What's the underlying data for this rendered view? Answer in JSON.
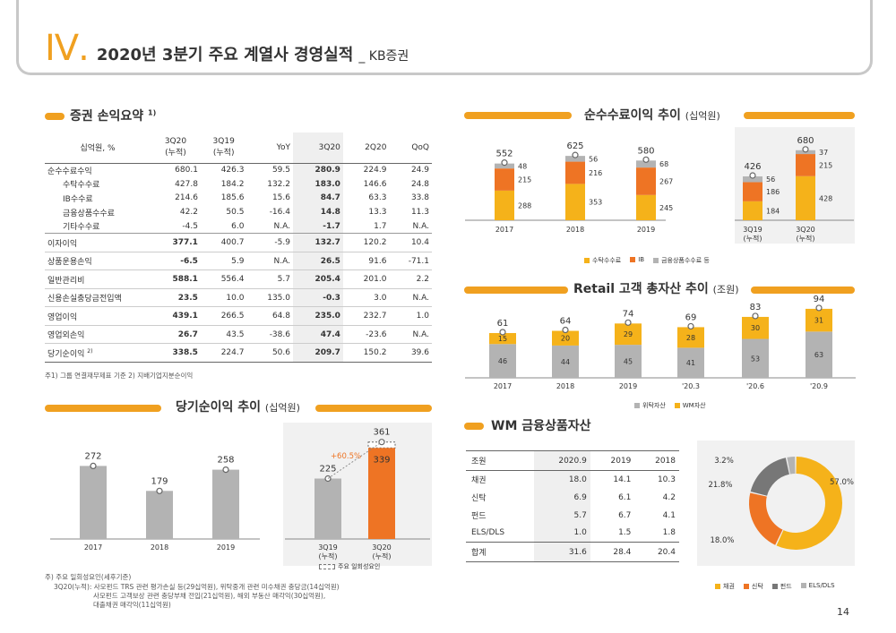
{
  "header": {
    "roman": "IV",
    "title": "2020년 3분기 주요 계열사 경영실적",
    "subtitle": "_ KB증권"
  },
  "pl": {
    "title": "증권 손익요약",
    "sup": "1)",
    "headers": {
      "h0": "십억원, %",
      "h1a": "3Q20",
      "h1b": "(누적)",
      "h2a": "3Q19",
      "h2b": "(누적)",
      "h3": "YoY",
      "h4": "3Q20",
      "h5": "2Q20",
      "h6": "QoQ"
    },
    "rows": [
      {
        "label": "순수수료수익",
        "v": [
          "680.1",
          "426.3",
          "59.5",
          "280.9",
          "224.9",
          "24.9"
        ]
      },
      {
        "label": "수탁수수료",
        "v": [
          "427.8",
          "184.2",
          "132.2",
          "183.0",
          "146.6",
          "24.8"
        ]
      },
      {
        "label": "IB수수료",
        "v": [
          "214.6",
          "185.6",
          "15.6",
          "84.7",
          "63.3",
          "33.8"
        ]
      },
      {
        "label": "금융상품수수료",
        "v": [
          "42.2",
          "50.5",
          "-16.4",
          "14.8",
          "13.3",
          "11.3"
        ]
      },
      {
        "label": "기타수수료",
        "v": [
          "-4.5",
          "6.0",
          "N.A.",
          "-1.7",
          "1.7",
          "N.A."
        ]
      },
      {
        "label": "이자이익",
        "v": [
          "377.1",
          "400.7",
          "-5.9",
          "132.7",
          "120.2",
          "10.4"
        ]
      },
      {
        "label": "상품운용손익",
        "v": [
          "-6.5",
          "5.9",
          "N.A.",
          "26.5",
          "91.6",
          "-71.1"
        ]
      },
      {
        "label": "일반관리비",
        "v": [
          "588.1",
          "556.4",
          "5.7",
          "205.4",
          "201.0",
          "2.2"
        ]
      },
      {
        "label": "신용손실충당금전입액",
        "v": [
          "23.5",
          "10.0",
          "135.0",
          "-0.3",
          "3.0",
          "N.A."
        ]
      },
      {
        "label": "영업이익",
        "v": [
          "439.1",
          "266.5",
          "64.8",
          "235.0",
          "232.7",
          "1.0"
        ]
      },
      {
        "label": "영업외손익",
        "v": [
          "26.7",
          "43.5",
          "-38.6",
          "47.4",
          "-23.6",
          "N.A."
        ]
      },
      {
        "label": "당기순이익",
        "sup": "2)",
        "v": [
          "338.5",
          "224.7",
          "50.6",
          "209.7",
          "150.2",
          "39.6"
        ]
      }
    ],
    "note": "주1) 그룹 연결재무제표 기준   2) 지배기업지분순이익"
  },
  "fee": {
    "title": "순수수료이익 추이",
    "unit": "(십억원)",
    "x": [
      "2017",
      "2018",
      "2019",
      "3Q19\n(누적)",
      "3Q20\n(누적)"
    ],
    "xa": [
      "2017",
      "2018",
      "2019",
      "3Q19",
      "3Q20"
    ],
    "xb": [
      "",
      "",
      "",
      "(누적)",
      "(누적)"
    ],
    "totals": [
      "552",
      "625",
      "580",
      "426",
      "680"
    ],
    "s1": [
      "288",
      "353",
      "245",
      "184",
      "428"
    ],
    "s2": [
      "215",
      "216",
      "267",
      "186",
      "215"
    ],
    "s3": [
      "48",
      "56",
      "68",
      "56",
      "37"
    ],
    "legend": [
      "수탁수수료",
      "IB",
      "금융상품수수료 등"
    ]
  },
  "retail": {
    "title": "Retail 고객 총자산 추이",
    "unit": "(조원)",
    "x": [
      "2017",
      "2018",
      "2019",
      "'20.3",
      "'20.6",
      "'20.9"
    ],
    "totals": [
      "61",
      "64",
      "74",
      "69",
      "83",
      "94"
    ],
    "s1": [
      "46",
      "44",
      "45",
      "41",
      "53",
      "63"
    ],
    "s2": [
      "15",
      "20",
      "29",
      "28",
      "30",
      "31"
    ],
    "legend": [
      "위탁자산",
      "WM자산"
    ]
  },
  "ni": {
    "title": "당기순이익 추이",
    "unit": "(십억원)",
    "x": [
      "2017",
      "2018",
      "2019"
    ],
    "values": [
      "272",
      "179",
      "258"
    ],
    "q": {
      "a1": "3Q19",
      "a2": "(누적)",
      "b1": "3Q20",
      "b2": "(누적)",
      "av": "225",
      "bv": "339",
      "btotal": "361",
      "growth": "+60.5%"
    },
    "legend": "주요 일회성요인",
    "note1": "주) 주요 일회성요인(세후기준)",
    "note2": "3Q20(누적):  사모펀드 TRS 관련 평가손실 등(29십억원), 위탁중개 관련 미수채권 충당금(14십억원)",
    "note3": "사모펀드 고객보상 관련 충당부채 전입(21십억원), 해외 부동산 매각익(30십억원),",
    "note4": "대출채권 매각익(11십억원)"
  },
  "wm": {
    "title": "WM 금융상품자산",
    "headers": [
      "조원",
      "2020.9",
      "2019",
      "2018"
    ],
    "rows": [
      {
        "label": "채권",
        "v": [
          "18.0",
          "14.1",
          "10.3"
        ]
      },
      {
        "label": "신탁",
        "v": [
          "6.9",
          "6.1",
          "4.2"
        ]
      },
      {
        "label": "펀드",
        "v": [
          "5.7",
          "6.7",
          "4.1"
        ]
      },
      {
        "label": "ELS/DLS",
        "v": [
          "1.0",
          "1.5",
          "1.8"
        ]
      }
    ],
    "total": {
      "label": "합계",
      "v": [
        "31.6",
        "28.4",
        "20.4"
      ]
    },
    "donut": {
      "values": [
        57.0,
        21.8,
        18.0,
        3.2
      ],
      "labels": [
        "57.0%",
        "21.8%",
        "18.0%",
        "3.2%"
      ]
    },
    "legend": [
      "채권",
      "신탁",
      "펀드",
      "ELS/DLS"
    ]
  },
  "colors": {
    "accent": "#f0a020",
    "yellow": "#f5b21a",
    "orange": "#ee7424",
    "gray": "#b3b3b3",
    "darkgray": "#777777"
  },
  "page": "14"
}
